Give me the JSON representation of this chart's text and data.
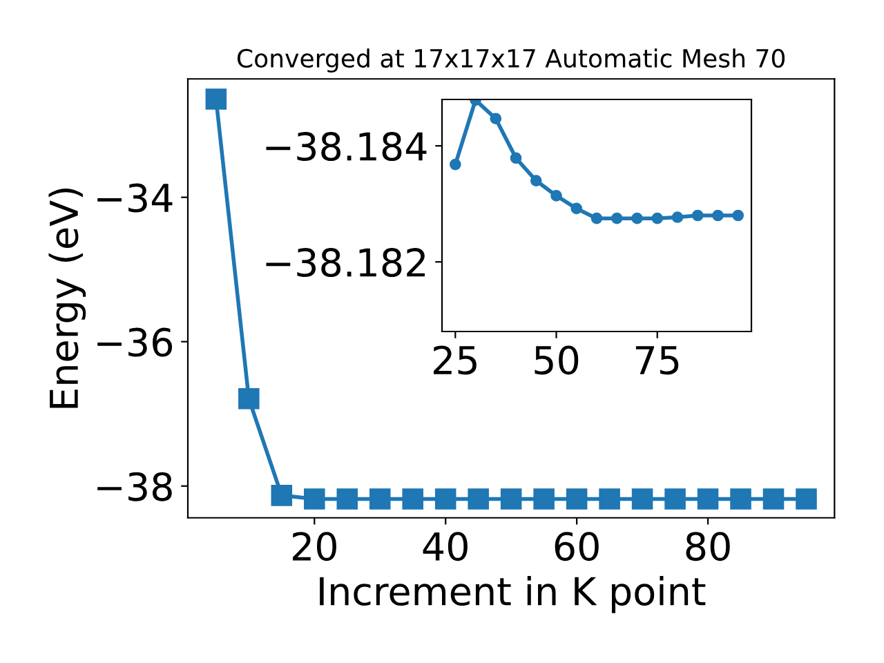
{
  "chart_data": [
    {
      "type": "line",
      "title": "Converged at 17x17x17 Automatic Mesh 70",
      "xlabel": "Increment in K point",
      "ylabel": "Energy (eV)",
      "x": [
        5,
        10,
        15,
        20,
        25,
        30,
        35,
        40,
        45,
        50,
        55,
        60,
        65,
        70,
        75,
        80,
        85,
        90,
        95
      ],
      "series": [
        {
          "color": "#1f77b4",
          "values": [
            -32.64,
            -36.79,
            -38.13,
            -38.18,
            -38.18,
            -38.18,
            -38.18,
            -38.18,
            -38.18,
            -38.18,
            -38.18,
            -38.18,
            -38.18,
            -38.18,
            -38.18,
            -38.18,
            -38.18,
            -38.18,
            -38.18
          ]
        }
      ],
      "xlim": [
        0.7,
        99.3
      ],
      "ylim": [
        -38.44,
        -32.36
      ],
      "xticks": [
        20,
        40,
        60,
        80
      ],
      "yticks": [
        -34,
        -36,
        -38
      ],
      "marker": "square",
      "grid": false,
      "legend": false
    },
    {
      "type": "line",
      "x": [
        25,
        30,
        35,
        40,
        45,
        50,
        55,
        60,
        65,
        70,
        75,
        80,
        85,
        90,
        95
      ],
      "series": [
        {
          "color": "#1f77b4",
          "values": [
            -38.18368,
            -38.18479,
            -38.18447,
            -38.18379,
            -38.1834,
            -38.18314,
            -38.18292,
            -38.18275,
            -38.18275,
            -38.18275,
            -38.18275,
            -38.18277,
            -38.1828,
            -38.1828,
            -38.1828
          ]
        }
      ],
      "xlim": [
        21.7,
        98.3
      ],
      "ylim": [
        -38.1808,
        -38.1848
      ],
      "xticks": [
        25,
        50,
        75
      ],
      "yticks": [
        -38.184,
        -38.182
      ],
      "marker": "circle",
      "grid": false,
      "legend": false
    }
  ]
}
